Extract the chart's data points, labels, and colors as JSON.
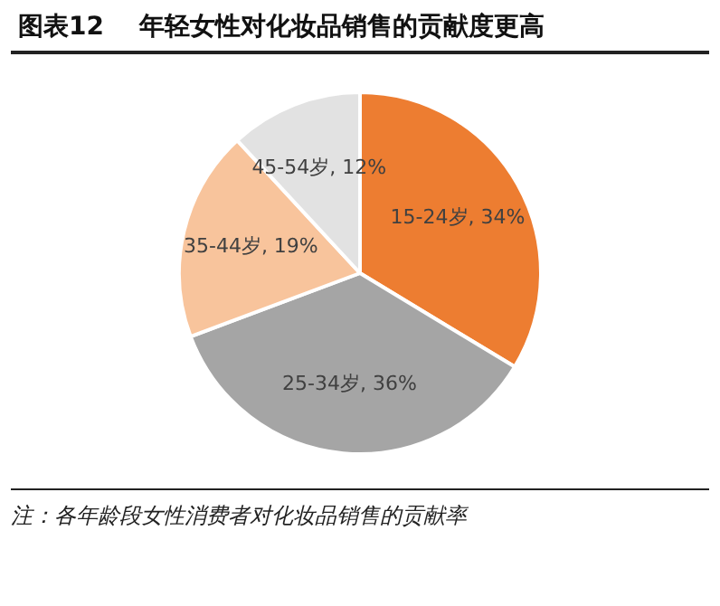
{
  "chart_data": {
    "type": "pie",
    "title": "图表12    年轻女性对化妆品销售的贡献度更高",
    "categories": [
      "15-24岁",
      "25-34岁",
      "35-44岁",
      "45-54岁"
    ],
    "values": [
      34,
      36,
      19,
      12
    ],
    "value_labels": [
      "34%",
      "36%",
      "19%",
      "12%"
    ],
    "colors": [
      "#ed7d31",
      "#a5a5a5",
      "#f8c49c",
      "#e2e2e2"
    ],
    "legend": false,
    "annotations": [
      "注：各年龄段女性消费者对化妆品销售的贡献率"
    ]
  }
}
